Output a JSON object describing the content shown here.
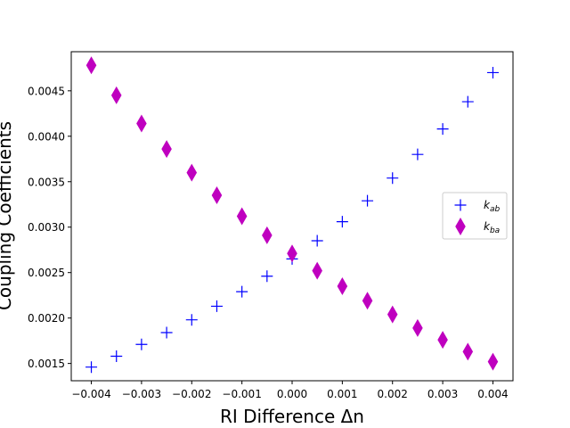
{
  "chart_data": {
    "type": "scatter",
    "title": "",
    "xlabel": "RI Difference Δn",
    "ylabel": "Coupling Coefficients",
    "xlim": [
      -0.0044,
      0.0044
    ],
    "ylim": [
      0.00131,
      0.00493
    ],
    "x_ticks": [
      -0.004,
      -0.003,
      -0.002,
      -0.001,
      0.0,
      0.001,
      0.002,
      0.003,
      0.004
    ],
    "x_tick_labels": [
      "−0.004",
      "−0.003",
      "−0.002",
      "−0.001",
      "0.000",
      "0.001",
      "0.002",
      "0.003",
      "0.004"
    ],
    "y_ticks": [
      0.0015,
      0.002,
      0.0025,
      0.003,
      0.0035,
      0.004,
      0.0045
    ],
    "y_tick_labels": [
      "0.0015",
      "0.0020",
      "0.0025",
      "0.0030",
      "0.0035",
      "0.0040",
      "0.0045"
    ],
    "grid": false,
    "legend_position": "center-right",
    "x": [
      -0.004,
      -0.0035,
      -0.003,
      -0.0025,
      -0.002,
      -0.0015,
      -0.001,
      -0.0005,
      0.0,
      0.0005,
      0.001,
      0.0015,
      0.002,
      0.0025,
      0.003,
      0.0035,
      0.004
    ],
    "series": [
      {
        "name": "k_ab",
        "legend_main": "k",
        "legend_sub": "ab",
        "marker": "plus",
        "color": "#0000ff",
        "values": [
          0.00146,
          0.00158,
          0.00171,
          0.00184,
          0.00198,
          0.00213,
          0.00229,
          0.00246,
          0.00265,
          0.00285,
          0.00306,
          0.00329,
          0.00354,
          0.0038,
          0.00408,
          0.00438,
          0.0047
        ]
      },
      {
        "name": "k_ba",
        "legend_main": "k",
        "legend_sub": "ba",
        "marker": "thin-diamond",
        "color": "#bf00bf",
        "values": [
          0.00478,
          0.00445,
          0.00414,
          0.00386,
          0.0036,
          0.00335,
          0.00312,
          0.00291,
          0.00271,
          0.00252,
          0.00235,
          0.00219,
          0.00204,
          0.00189,
          0.00176,
          0.00163,
          0.00152
        ]
      }
    ]
  }
}
